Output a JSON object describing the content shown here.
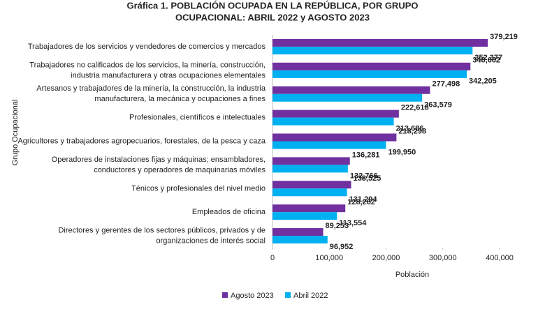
{
  "chart_data": {
    "type": "bar",
    "orientation": "horizontal",
    "title": [
      "Gráfica 1. POBLACIÓN OCUPADA EN LA REPÚBLICA, POR GRUPO",
      "OCUPACIONAL: ABRIL 2022 y AGOSTO 2023"
    ],
    "x_label": "Población",
    "y_label": "Grupo Ocupacional",
    "categories": [
      "Trabajadores de los servicios y vendedores  de comercios y mercados",
      "Trabajadores no calificados de los servicios, la minería, construcción,\nindustria manufacturera y otras ocupaciones elementales",
      "Artesanos y trabajadores de la minería, la construcción, la industria\nmanufacturera, la mecánica y ocupaciones a fines",
      "Profesionales, científicos e intelectuales",
      "Agricultores y trabajadores agropecuarios, forestales, de la pesca y caza",
      "Operadores de instalaciones fijas y máquinas; ensambladores,\nconductores y operadores de maquinarias móviles",
      "Ténicos y profesionales del nivel medio",
      "Empleados de oficina",
      "Directores y gerentes de los sectores públicos, privados y de\norganizaciones de interés social"
    ],
    "series": [
      {
        "name": "Agosto 2023",
        "color": "#7030a0",
        "values": [
          379219,
          348662,
          277498,
          222618,
          218298,
          136281,
          138525,
          128262,
          89253
        ],
        "value_labels": [
          "379,219",
          "348,662",
          "277,498",
          "222,618",
          "218,298",
          "136,281",
          "138,525",
          "128,262",
          "89,253"
        ]
      },
      {
        "name": "Abril 2022",
        "color": "#00b0f0",
        "values": [
          352377,
          342205,
          263579,
          213686,
          199950,
          132766,
          131294,
          113554,
          96952
        ],
        "value_labels": [
          "352,377",
          "342,205",
          "263,579",
          "213,686",
          "199,950",
          "132,766",
          "131,294",
          "113,554",
          "96,952"
        ]
      }
    ],
    "xlim": [
      0,
      400000
    ],
    "xticks": [
      0,
      {
        "value": 100000,
        "label": "100,000"
      },
      {
        "value": 200000,
        "label": "200,000"
      },
      {
        "value": 300000,
        "label": "300,000"
      },
      {
        "value": 400000,
        "label": "400,000"
      }
    ],
    "legend": "bottom"
  }
}
